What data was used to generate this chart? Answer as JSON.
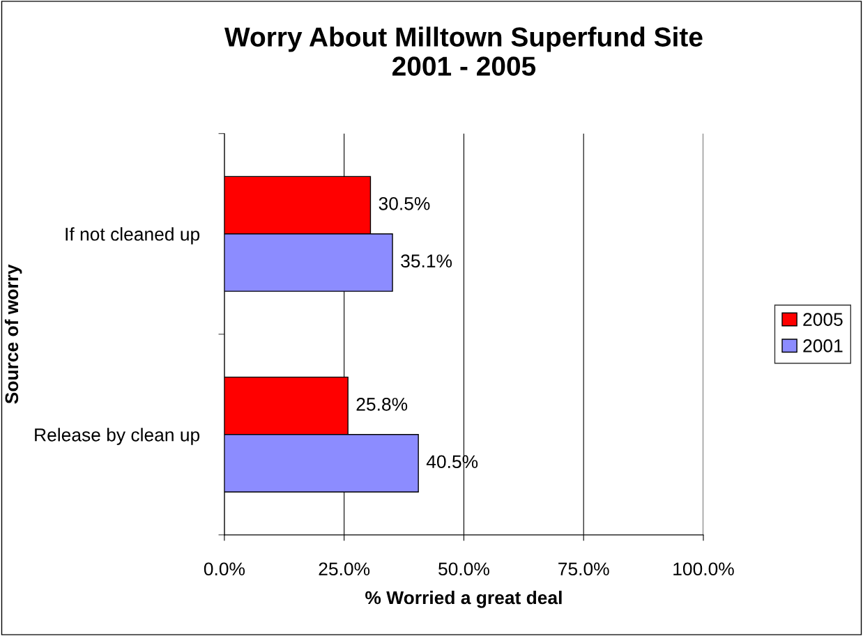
{
  "chart_data": {
    "type": "bar",
    "orientation": "horizontal",
    "title": "Worry About Milltown Superfund Site\n2001 - 2005",
    "xlabel": "% Worried a great deal",
    "ylabel": "Source of worry",
    "categories": [
      "If not cleaned up",
      "Release by clean up"
    ],
    "series": [
      {
        "name": "2005",
        "color": "#ff0000",
        "values": [
          30.5,
          25.8
        ],
        "value_labels": [
          "30.5%",
          "25.8%"
        ]
      },
      {
        "name": "2001",
        "color": "#8c8cff",
        "values": [
          35.1,
          40.5
        ],
        "value_labels": [
          "35.1%",
          "40.5%"
        ]
      }
    ],
    "xlim": [
      0,
      100
    ],
    "xticks": [
      {
        "value": 0,
        "label": "0.0%"
      },
      {
        "value": 25,
        "label": "25.0%"
      },
      {
        "value": 50,
        "label": "50.0%"
      },
      {
        "value": 75,
        "label": "75.0%"
      },
      {
        "value": 100,
        "label": "100.0%"
      }
    ],
    "grid": "x",
    "legend": "right"
  }
}
